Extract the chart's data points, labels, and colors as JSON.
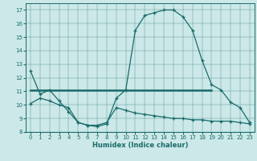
{
  "xlabel": "Humidex (Indice chaleur)",
  "bg_color": "#cce8e8",
  "line_color": "#1a6b6b",
  "xlim": [
    -0.5,
    23.5
  ],
  "ylim": [
    8,
    17.5
  ],
  "xticks": [
    0,
    1,
    2,
    3,
    4,
    5,
    6,
    7,
    8,
    9,
    10,
    11,
    12,
    13,
    14,
    15,
    16,
    17,
    18,
    19,
    20,
    21,
    22,
    23
  ],
  "yticks": [
    8,
    9,
    10,
    11,
    12,
    13,
    14,
    15,
    16,
    17
  ],
  "curve1_x": [
    0,
    1,
    2,
    3,
    4,
    5,
    6,
    7,
    8,
    9,
    10,
    11,
    12,
    13,
    14,
    15,
    16,
    17,
    18,
    19,
    20,
    21,
    22,
    23
  ],
  "curve1_y": [
    12.5,
    10.8,
    11.1,
    10.3,
    9.5,
    8.7,
    8.5,
    8.4,
    8.6,
    10.5,
    11.1,
    15.5,
    16.6,
    16.8,
    17.0,
    17.0,
    16.5,
    15.5,
    13.3,
    11.5,
    11.1,
    10.2,
    9.8,
    8.7
  ],
  "curve2_x": [
    0,
    19
  ],
  "curve2_y": [
    11.1,
    11.1
  ],
  "curve3_x": [
    0,
    1,
    2,
    3,
    4,
    5,
    6,
    7,
    8,
    9,
    10,
    11,
    12,
    13,
    14,
    15,
    16,
    17,
    18,
    19,
    20,
    21,
    22,
    23
  ],
  "curve3_y": [
    10.1,
    10.5,
    10.3,
    10.0,
    9.8,
    8.7,
    8.5,
    8.5,
    8.7,
    9.8,
    9.6,
    9.4,
    9.3,
    9.2,
    9.1,
    9.0,
    9.0,
    8.9,
    8.9,
    8.8,
    8.8,
    8.8,
    8.7,
    8.6
  ],
  "curve2_end_marker_x": 19,
  "curve2_end_marker_y": 11.5
}
